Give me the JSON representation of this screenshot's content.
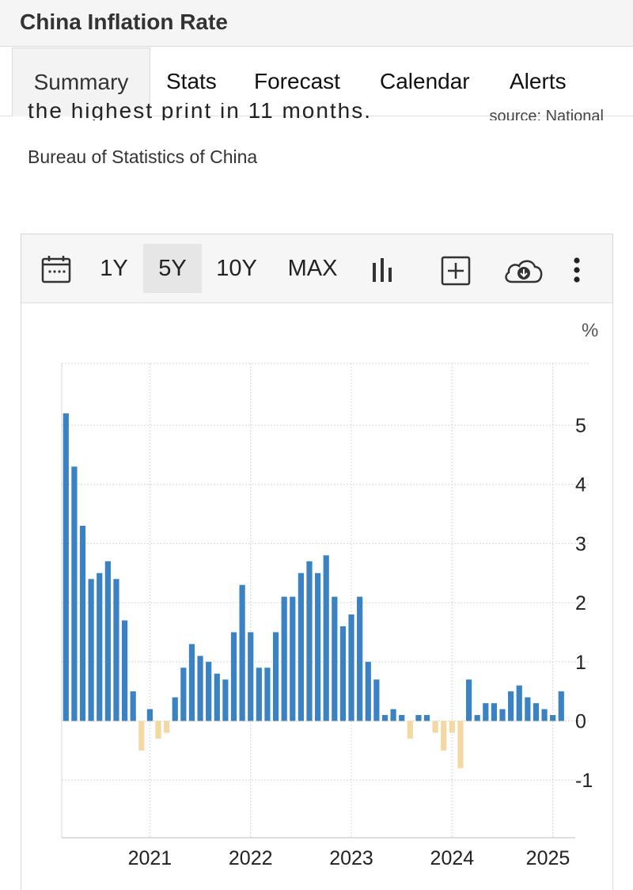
{
  "header": {
    "title": "China Inflation Rate"
  },
  "tabs": [
    "Summary",
    "Stats",
    "Forecast",
    "Calendar",
    "Alerts"
  ],
  "description": {
    "line1_partial": "the highest print in 11 months.",
    "source_partial": "source: National",
    "line2": "Bureau of Statistics of China"
  },
  "toolbar": {
    "ranges": [
      "1Y",
      "5Y",
      "10Y",
      "MAX"
    ],
    "selected": "5Y",
    "icons": [
      "calendar-icon",
      "bar-chart-icon",
      "add-icon",
      "download-cloud-icon",
      "more-vert-icon"
    ]
  },
  "colors": {
    "positive": "#3b82c4",
    "negative": "#f4d8a4",
    "grid": "#d7d7d7"
  },
  "chart_data": {
    "type": "bar",
    "unit": "%",
    "ylim": [
      -2,
      6
    ],
    "yticks": [
      5,
      4,
      3,
      2,
      1,
      0,
      -1
    ],
    "xtick_labels": [
      "2021",
      "2022",
      "2023",
      "2024",
      "2025"
    ],
    "grid": true,
    "x_start": "2020-03",
    "x_frequency": "monthly",
    "values": [
      5.2,
      4.3,
      3.3,
      2.4,
      2.5,
      2.7,
      2.4,
      1.7,
      0.5,
      -0.5,
      0.2,
      -0.3,
      -0.2,
      0.4,
      0.9,
      1.3,
      1.1,
      1.0,
      0.8,
      0.7,
      1.5,
      2.3,
      1.5,
      0.9,
      0.9,
      1.5,
      2.1,
      2.1,
      2.5,
      2.7,
      2.5,
      2.8,
      2.1,
      1.6,
      1.8,
      2.1,
      1.0,
      0.7,
      0.1,
      0.2,
      0.1,
      -0.3,
      0.1,
      0.1,
      -0.2,
      -0.5,
      -0.2,
      -0.8,
      0.7,
      0.1,
      0.3,
      0.3,
      0.2,
      0.5,
      0.6,
      0.4,
      0.3,
      0.2,
      0.1,
      0.5
    ]
  }
}
